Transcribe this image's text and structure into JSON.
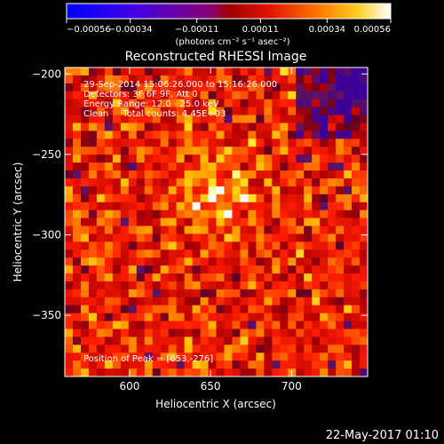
{
  "chart_data": {
    "type": "heatmap",
    "title": "Reconstructed RHESSI Image",
    "xlabel": "Heliocentric X (arcsec)",
    "ylabel": "Heliocentric Y (arcsec)",
    "xlim": [
      560,
      747
    ],
    "ylim": [
      -388,
      -196
    ],
    "xticks": [
      600,
      650,
      700
    ],
    "yticks": [
      -200,
      -250,
      -300,
      -350
    ],
    "xtick_labels": [
      "600",
      "650",
      "700"
    ],
    "ytick_labels": [
      "−200",
      "−250",
      "−300",
      "−350"
    ],
    "colorbar": {
      "colormap": "hot (IDL color table 3) with blue negatives",
      "min": -0.00056,
      "max": 0.00056,
      "ticks": [
        -0.00056,
        -0.00034,
        -0.00011,
        0.00011,
        0.00034,
        0.00056
      ],
      "tick_labels": [
        "−0.00056",
        "−0.00034",
        "−0.00011",
        "0.00011",
        "0.00034",
        "0.00056"
      ],
      "units_label": "(photons cm⁻² s⁻¹ asec⁻²)"
    },
    "annotations": [
      "29-Sep-2014 15:06:26.000 to 15:16:26.000",
      "Detectors: 3F 6F 9F, Att 0",
      "Energy Range: 12.0 - 25.0 keV",
      "Clean     Total counts: 4.45E+03"
    ],
    "peak_label": "Position of Peak = [653,-276]",
    "peak": {
      "x": 653,
      "y": -276
    },
    "timestamp": "22-May-2017 01:10"
  }
}
